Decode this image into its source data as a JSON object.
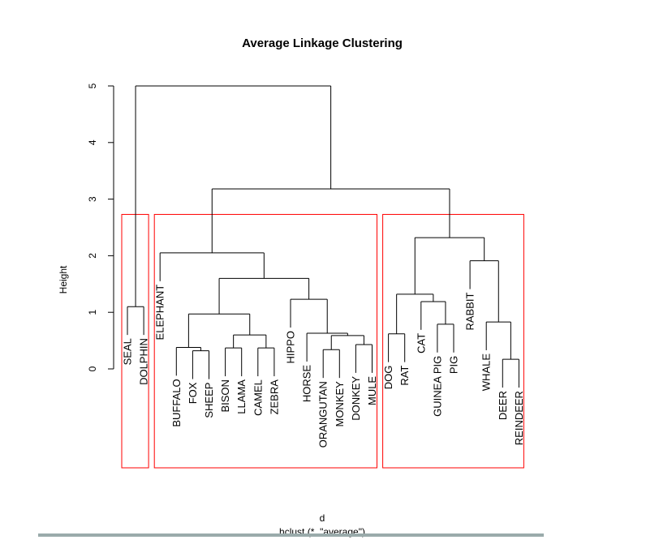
{
  "chart_data": {
    "type": "dendrogram",
    "title": "Average Linkage Clustering",
    "ylabel": "Height",
    "xlabel": "d",
    "sublabel": "hclust (*, \"average\")",
    "ylim": [
      0,
      5
    ],
    "yticks": [
      "0",
      "1",
      "2",
      "3",
      "4",
      "5"
    ],
    "hang": 0.5,
    "leaves": [
      "SEAL",
      "DOLPHIN",
      "ELEPHANT",
      "BUFFALO",
      "FOX",
      "SHEEP",
      "BISON",
      "LLAMA",
      "CAMEL",
      "ZEBRA",
      "HIPPO",
      "HORSE",
      "ORANGUTAN",
      "MONKEY",
      "DONKEY",
      "MULE",
      "DOG",
      "RAT",
      "CAT",
      "GUINEA PIG",
      "PIG",
      "RABBIT",
      "WHALE",
      "DEER",
      "REINDEER"
    ],
    "merges": [
      {
        "id": "m1",
        "left": "SEAL",
        "right": "DOLPHIN",
        "height": 1.1
      },
      {
        "id": "m2",
        "left": "FOX",
        "right": "SHEEP",
        "height": 0.32
      },
      {
        "id": "m3",
        "left": "BUFFALO",
        "right": "m2",
        "height": 0.38
      },
      {
        "id": "m4",
        "left": "BISON",
        "right": "LLAMA",
        "height": 0.37
      },
      {
        "id": "m5",
        "left": "CAMEL",
        "right": "ZEBRA",
        "height": 0.37
      },
      {
        "id": "m6",
        "left": "m4",
        "right": "m5",
        "height": 0.6
      },
      {
        "id": "m7",
        "left": "m3",
        "right": "m6",
        "height": 0.97
      },
      {
        "id": "m8",
        "left": "ORANGUTAN",
        "right": "MONKEY",
        "height": 0.34
      },
      {
        "id": "m9",
        "left": "DONKEY",
        "right": "MULE",
        "height": 0.43
      },
      {
        "id": "m10",
        "left": "m8",
        "right": "m9",
        "height": 0.59
      },
      {
        "id": "m11",
        "left": "HORSE",
        "right": "m10",
        "height": 0.63
      },
      {
        "id": "m12",
        "left": "HIPPO",
        "right": "m11",
        "height": 1.23
      },
      {
        "id": "m13",
        "left": "m7",
        "right": "m12",
        "height": 1.6
      },
      {
        "id": "m14",
        "left": "ELEPHANT",
        "right": "m13",
        "height": 2.05
      },
      {
        "id": "m15",
        "left": "DOG",
        "right": "RAT",
        "height": 0.62
      },
      {
        "id": "m16",
        "left": "GUINEA PIG",
        "right": "PIG",
        "height": 0.79
      },
      {
        "id": "m17",
        "left": "CAT",
        "right": "m16",
        "height": 1.19
      },
      {
        "id": "m18",
        "left": "m15",
        "right": "m17",
        "height": 1.32
      },
      {
        "id": "m19",
        "left": "DEER",
        "right": "REINDEER",
        "height": 0.17
      },
      {
        "id": "m20",
        "left": "WHALE",
        "right": "m19",
        "height": 0.83
      },
      {
        "id": "m21",
        "left": "RABBIT",
        "right": "m20",
        "height": 1.91
      },
      {
        "id": "m22",
        "left": "m18",
        "right": "m21",
        "height": 2.32
      },
      {
        "id": "m23",
        "left": "m14",
        "right": "m22",
        "height": 3.18
      },
      {
        "id": "m24",
        "left": "m1",
        "right": "m23",
        "height": 5.0
      }
    ],
    "cluster_boxes": {
      "k": 3,
      "groups": [
        [
          "SEAL",
          "DOLPHIN"
        ],
        [
          "ELEPHANT",
          "MULE"
        ],
        [
          "DOG",
          "REINDEER"
        ]
      ],
      "cut_height": 2.73,
      "color": "#ff0000"
    }
  }
}
